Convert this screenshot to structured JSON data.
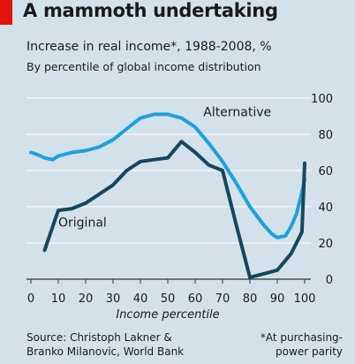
{
  "chart_data": {
    "type": "line",
    "title": "A mammoth undertaking",
    "subtitle": "Increase in real income*, 1988-2008, %",
    "subtitle2": "By percentile of global income distribution",
    "xlabel": "Income percentile",
    "xlim": [
      0,
      100
    ],
    "ylim": [
      0,
      100
    ],
    "x_ticks": [
      0,
      10,
      20,
      30,
      40,
      50,
      60,
      70,
      80,
      90,
      100
    ],
    "y_ticks": [
      0,
      20,
      40,
      60,
      80,
      100
    ],
    "y_axis_side": "right",
    "grid": "horizontal",
    "series": [
      {
        "name": "Original",
        "color": "#17465e",
        "x": [
          5,
          10,
          15,
          20,
          25,
          30,
          35,
          40,
          45,
          50,
          55,
          60,
          65,
          70,
          75,
          80,
          85,
          90,
          95,
          99,
          100
        ],
        "y": [
          16,
          38,
          39,
          42,
          47,
          52,
          60,
          65,
          66,
          67,
          76,
          70,
          63,
          60,
          30,
          1,
          3,
          5,
          14,
          26,
          64
        ]
      },
      {
        "name": "Alternative",
        "color": "#1ea0dc",
        "x": [
          0,
          2,
          5,
          8,
          10,
          15,
          20,
          25,
          30,
          35,
          40,
          45,
          50,
          55,
          60,
          65,
          70,
          75,
          80,
          85,
          88,
          90,
          93,
          95,
          97,
          99,
          100
        ],
        "y": [
          70,
          69,
          67,
          66,
          68,
          70,
          71,
          73,
          77,
          83,
          89,
          91,
          91,
          89,
          84,
          75,
          65,
          53,
          40,
          30,
          25,
          23,
          24,
          29,
          36,
          48,
          55
        ]
      }
    ]
  },
  "source": {
    "line1": "Source: Christoph Lakner &",
    "line2": "Branko Milanovic, World Bank"
  },
  "note": {
    "line1": "*At purchasing-",
    "line2": "power parity"
  },
  "colors": {
    "accent": "#e3120b",
    "background": "#d3e2ea"
  }
}
